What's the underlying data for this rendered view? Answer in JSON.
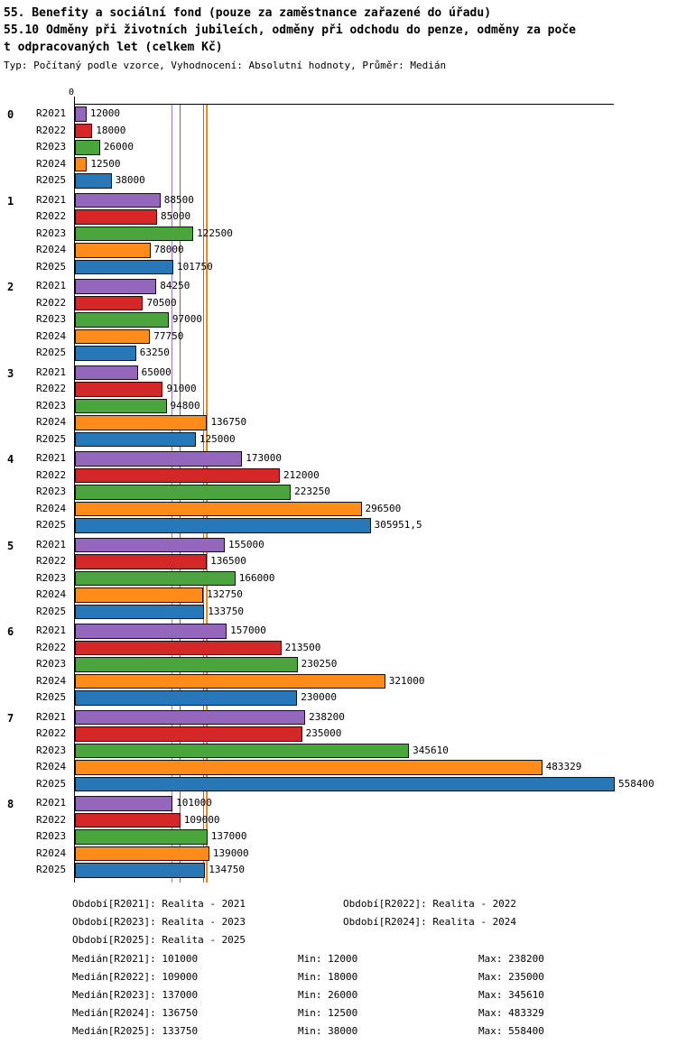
{
  "chart_data": {
    "type": "bar",
    "orientation": "horizontal",
    "title_lines": [
      "55. Benefity a sociální fond (pouze za zaměstnance zařazené do úřadu)",
      "55.10 Odměny při životních jubileích, odměny při odchodu do penze, odměny za poče",
      "t odpracovaných let (celkem Kč)"
    ],
    "meta": "Typ: Počítaný podle vzorce, Vyhodnocení: Absolutní hodnoty, Průměr: Medián",
    "axis_zero_label": "0",
    "xlim": [
      0,
      558400
    ],
    "grid": false,
    "legend_position": "bottom",
    "categories": [
      "0",
      "1",
      "2",
      "3",
      "4",
      "5",
      "6",
      "7",
      "8"
    ],
    "series": [
      {
        "name": "R2021",
        "color": "#9467bd",
        "median": 101000,
        "values": [
          12000,
          88500,
          84250,
          65000,
          173000,
          155000,
          157000,
          238200,
          101000
        ],
        "labels": [
          "12000",
          "88500",
          "84250",
          "65000",
          "173000",
          "155000",
          "157000",
          "238200",
          "101000"
        ]
      },
      {
        "name": "R2022",
        "color": "#d62728",
        "median": 109000,
        "values": [
          18000,
          85000,
          70500,
          91000,
          212000,
          136500,
          213500,
          235000,
          109000
        ],
        "labels": [
          "18000",
          "85000",
          "70500",
          "91000",
          "212000",
          "136500",
          "213500",
          "235000",
          "109000"
        ]
      },
      {
        "name": "R2023",
        "color": "#4aa53c",
        "median": 137000,
        "values": [
          26000,
          122500,
          97000,
          94800,
          223250,
          166000,
          230250,
          345610,
          137000
        ],
        "labels": [
          "26000",
          "122500",
          "97000",
          "94800",
          "223250",
          "166000",
          "230250",
          "345610",
          "137000"
        ]
      },
      {
        "name": "R2024",
        "color": "#ff8c19",
        "median": 136750,
        "values": [
          12500,
          78000,
          77750,
          136750,
          296500,
          132750,
          321000,
          483329,
          139000
        ],
        "labels": [
          "12500",
          "78000",
          "77750",
          "136750",
          "296500",
          "132750",
          "321000",
          "483329",
          "139000"
        ]
      },
      {
        "name": "R2025",
        "color": "#2878b8",
        "median": 133750,
        "values": [
          38000,
          101750,
          63250,
          125000,
          305951.5,
          133750,
          230000,
          558400,
          134750
        ],
        "labels": [
          "38000",
          "101750",
          "63250",
          "125000",
          "305951,5",
          "133750",
          "230000",
          "558400",
          "134750"
        ]
      }
    ],
    "legend": [
      "Období[R2021]: Realita - 2021",
      "Období[R2022]: Realita - 2022",
      "Období[R2023]: Realita - 2023",
      "Období[R2024]: Realita - 2024",
      "Období[R2025]: Realita - 2025"
    ],
    "stats": [
      [
        "Medián[R2021]: 101000",
        "Min: 12000",
        "Max: 238200"
      ],
      [
        "Medián[R2022]: 109000",
        "Min: 18000",
        "Max: 235000"
      ],
      [
        "Medián[R2023]: 137000",
        "Min: 26000",
        "Max: 345610"
      ],
      [
        "Medián[R2024]: 136750",
        "Min: 12500",
        "Max: 483329"
      ],
      [
        "Medián[R2025]: 133750",
        "Min: 38000",
        "Max: 558400"
      ]
    ]
  }
}
